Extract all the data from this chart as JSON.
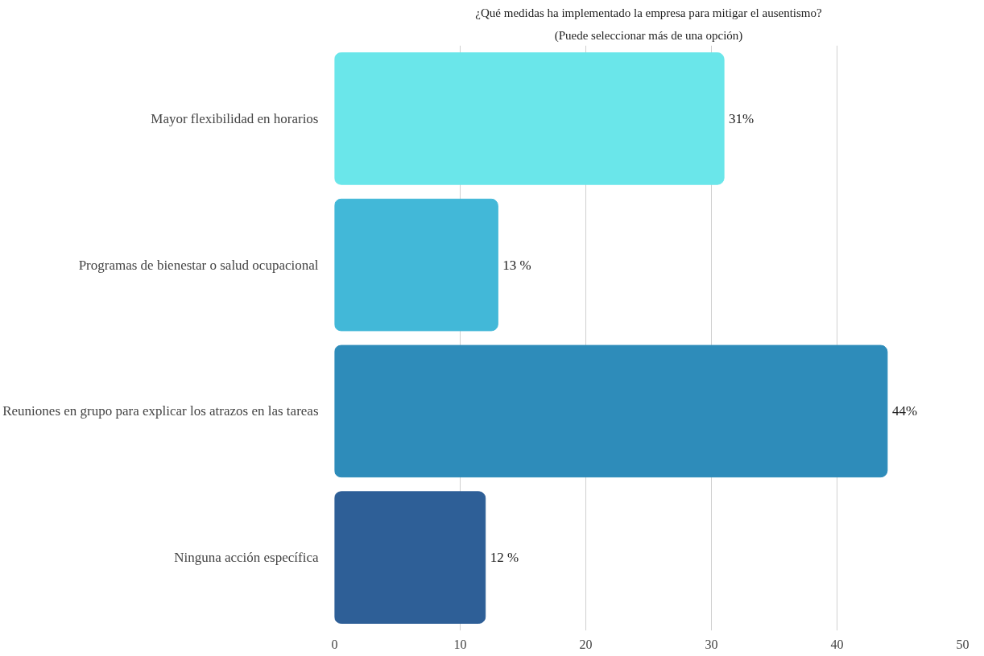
{
  "chart_data": {
    "type": "bar",
    "orientation": "horizontal",
    "title": "¿Qué medidas ha implementado la empresa para mitigar el ausentismo?",
    "subtitle": "(Puede seleccionar más de una opción)",
    "categories": [
      "Mayor flexibilidad en horarios",
      "Programas de bienestar o salud ocupacional",
      "Reuniones en grupo para explicar los atrazos en las tareas",
      "Ninguna acción específica"
    ],
    "values": [
      31,
      13,
      44,
      12
    ],
    "colors": [
      "#6ae6ea",
      "#42b8d8",
      "#2e8cba",
      "#2e5f97"
    ],
    "value_labels": [
      "31%",
      "13 %",
      "44%",
      "12 %"
    ],
    "xlim": [
      0,
      50
    ],
    "xticks": [
      0,
      10,
      20,
      30,
      40,
      50
    ],
    "grid": "x"
  }
}
